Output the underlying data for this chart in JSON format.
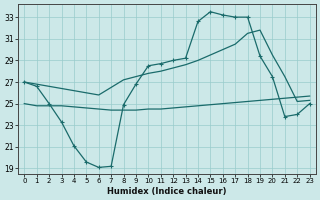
{
  "xlabel": "Humidex (Indice chaleur)",
  "ylabel": "",
  "bg_color": "#cce8e8",
  "grid_color": "#99cccc",
  "line_color": "#1a6b6b",
  "x_ticks": [
    0,
    1,
    2,
    3,
    4,
    5,
    6,
    7,
    8,
    9,
    10,
    11,
    12,
    13,
    14,
    15,
    16,
    17,
    18,
    19,
    20,
    21,
    22,
    23
  ],
  "y_ticks": [
    19,
    21,
    23,
    25,
    27,
    29,
    31,
    33
  ],
  "ylim": [
    18.5,
    34.2
  ],
  "xlim": [
    -0.5,
    23.5
  ],
  "line_main_x": [
    0,
    1,
    2,
    3,
    4,
    5,
    6,
    7,
    8,
    9,
    10,
    11,
    12,
    13,
    14,
    15,
    16,
    17,
    18,
    19,
    20,
    21,
    22,
    23
  ],
  "line_main_y": [
    27.0,
    26.6,
    25.0,
    23.3,
    21.1,
    19.6,
    19.1,
    19.2,
    24.9,
    26.8,
    28.5,
    28.7,
    29.0,
    29.2,
    32.6,
    33.5,
    33.2,
    33.0,
    33.0,
    29.4,
    27.5,
    23.8,
    24.0,
    25.0
  ],
  "line_upper_x": [
    0,
    1,
    2,
    3,
    4,
    5,
    6,
    7,
    8,
    9,
    10,
    11,
    12,
    13,
    14,
    15,
    16,
    17,
    18,
    19,
    20,
    21,
    22,
    23
  ],
  "line_upper_y": [
    27.0,
    26.8,
    26.6,
    26.4,
    26.2,
    26.0,
    25.8,
    26.5,
    27.2,
    27.5,
    27.8,
    28.0,
    28.3,
    28.6,
    29.0,
    29.5,
    30.0,
    30.5,
    31.5,
    31.8,
    29.5,
    27.5,
    25.2,
    25.3
  ],
  "line_lower_x": [
    0,
    1,
    2,
    3,
    4,
    5,
    6,
    7,
    8,
    9,
    10,
    11,
    12,
    13,
    14,
    15,
    16,
    17,
    18,
    19,
    20,
    21,
    22,
    23
  ],
  "line_lower_y": [
    25.0,
    24.8,
    24.8,
    24.8,
    24.7,
    24.6,
    24.5,
    24.4,
    24.4,
    24.4,
    24.5,
    24.5,
    24.6,
    24.7,
    24.8,
    24.9,
    25.0,
    25.1,
    25.2,
    25.3,
    25.4,
    25.5,
    25.6,
    25.7
  ]
}
